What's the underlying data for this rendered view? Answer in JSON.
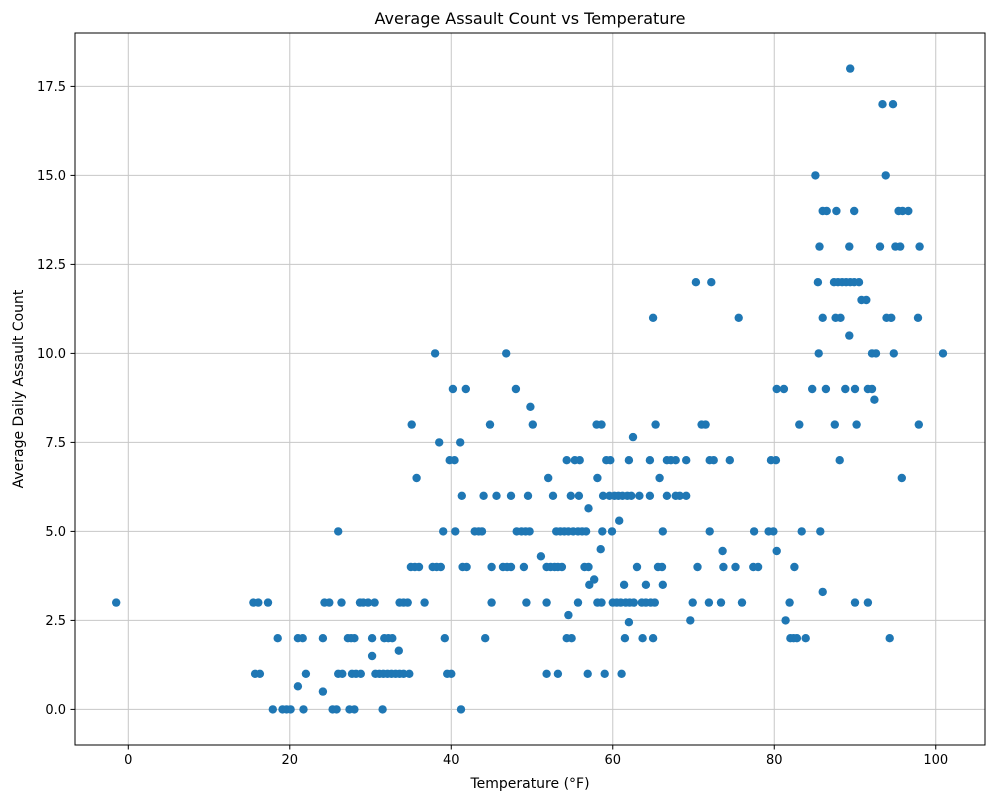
{
  "chart_data": {
    "type": "scatter",
    "title": "Average Assault Count vs Temperature",
    "xlabel": "Temperature (°F)",
    "ylabel": "Average Daily Assault Count",
    "xlim": [
      -6.6,
      106.1
    ],
    "ylim": [
      -1.0,
      19.0
    ],
    "xticks": [
      0,
      20,
      40,
      60,
      80,
      100
    ],
    "yticks": [
      0.0,
      2.5,
      5.0,
      7.5,
      10.0,
      12.5,
      15.0,
      17.5
    ],
    "grid": true,
    "legend_position": "none",
    "marker_color": "#1f77b4",
    "grid_color": "#c7c7c7",
    "marker_radius": 4.2,
    "points": [
      [
        89.4,
        18
      ],
      [
        93.4,
        17
      ],
      [
        94.7,
        17
      ],
      [
        85.1,
        15
      ],
      [
        93.8,
        15
      ],
      [
        86.0,
        14
      ],
      [
        86.5,
        14
      ],
      [
        87.7,
        14
      ],
      [
        89.9,
        14
      ],
      [
        95.4,
        14
      ],
      [
        95.9,
        14
      ],
      [
        96.6,
        14
      ],
      [
        85.6,
        13
      ],
      [
        89.3,
        13
      ],
      [
        93.1,
        13
      ],
      [
        95.0,
        13
      ],
      [
        95.6,
        13
      ],
      [
        98.0,
        13
      ],
      [
        70.3,
        12
      ],
      [
        72.2,
        12
      ],
      [
        85.4,
        12
      ],
      [
        87.4,
        12
      ],
      [
        87.9,
        12
      ],
      [
        88.4,
        12
      ],
      [
        88.9,
        12
      ],
      [
        89.4,
        12
      ],
      [
        89.9,
        12
      ],
      [
        90.5,
        12
      ],
      [
        90.8,
        11.5
      ],
      [
        91.4,
        11.5
      ],
      [
        65.0,
        11
      ],
      [
        75.6,
        11
      ],
      [
        86.0,
        11
      ],
      [
        87.6,
        11
      ],
      [
        88.2,
        11
      ],
      [
        93.9,
        11
      ],
      [
        94.5,
        11
      ],
      [
        97.8,
        11
      ],
      [
        89.3,
        10.5
      ],
      [
        38.0,
        10
      ],
      [
        46.8,
        10
      ],
      [
        85.5,
        10
      ],
      [
        92.1,
        10
      ],
      [
        92.6,
        10
      ],
      [
        94.8,
        10
      ],
      [
        100.9,
        10
      ],
      [
        40.2,
        9
      ],
      [
        41.8,
        9
      ],
      [
        48.0,
        9
      ],
      [
        80.3,
        9
      ],
      [
        81.2,
        9
      ],
      [
        84.7,
        9
      ],
      [
        86.4,
        9
      ],
      [
        88.8,
        9
      ],
      [
        90.0,
        9
      ],
      [
        91.6,
        9
      ],
      [
        92.1,
        9
      ],
      [
        92.4,
        8.7
      ],
      [
        49.8,
        8.5
      ],
      [
        35.1,
        8
      ],
      [
        44.8,
        8
      ],
      [
        50.1,
        8
      ],
      [
        58.0,
        8
      ],
      [
        58.6,
        8
      ],
      [
        65.3,
        8
      ],
      [
        71.0,
        8
      ],
      [
        71.5,
        8
      ],
      [
        83.1,
        8
      ],
      [
        87.5,
        8
      ],
      [
        90.2,
        8
      ],
      [
        97.9,
        8
      ],
      [
        62.5,
        7.65
      ],
      [
        38.5,
        7.5
      ],
      [
        41.1,
        7.5
      ],
      [
        39.8,
        7
      ],
      [
        40.4,
        7
      ],
      [
        54.3,
        7
      ],
      [
        55.3,
        7
      ],
      [
        55.9,
        7
      ],
      [
        59.2,
        7
      ],
      [
        59.7,
        7
      ],
      [
        62.0,
        7
      ],
      [
        64.6,
        7
      ],
      [
        66.7,
        7
      ],
      [
        67.2,
        7
      ],
      [
        67.8,
        7
      ],
      [
        69.1,
        7
      ],
      [
        72.0,
        7
      ],
      [
        72.5,
        7
      ],
      [
        74.5,
        7
      ],
      [
        79.6,
        7
      ],
      [
        80.2,
        7
      ],
      [
        88.1,
        7
      ],
      [
        35.7,
        6.5
      ],
      [
        52.0,
        6.5
      ],
      [
        58.1,
        6.5
      ],
      [
        65.8,
        6.5
      ],
      [
        95.8,
        6.5
      ],
      [
        41.3,
        6
      ],
      [
        44.0,
        6
      ],
      [
        45.6,
        6
      ],
      [
        47.4,
        6
      ],
      [
        49.5,
        6
      ],
      [
        52.6,
        6
      ],
      [
        54.8,
        6
      ],
      [
        55.8,
        6
      ],
      [
        58.8,
        6
      ],
      [
        59.6,
        6
      ],
      [
        60.2,
        6
      ],
      [
        60.7,
        6
      ],
      [
        61.2,
        6
      ],
      [
        61.8,
        6
      ],
      [
        62.3,
        6
      ],
      [
        63.3,
        6
      ],
      [
        64.6,
        6
      ],
      [
        66.7,
        6
      ],
      [
        67.8,
        6
      ],
      [
        68.3,
        6
      ],
      [
        69.1,
        6
      ],
      [
        57.0,
        5.65
      ],
      [
        60.8,
        5.3
      ],
      [
        26.0,
        5
      ],
      [
        39.0,
        5
      ],
      [
        40.5,
        5
      ],
      [
        42.9,
        5
      ],
      [
        43.4,
        5
      ],
      [
        43.8,
        5
      ],
      [
        48.1,
        5
      ],
      [
        48.7,
        5
      ],
      [
        49.2,
        5
      ],
      [
        49.7,
        5
      ],
      [
        53.0,
        5
      ],
      [
        53.5,
        5
      ],
      [
        54.0,
        5
      ],
      [
        54.5,
        5
      ],
      [
        55.1,
        5
      ],
      [
        55.7,
        5
      ],
      [
        56.2,
        5
      ],
      [
        56.7,
        5
      ],
      [
        58.7,
        5
      ],
      [
        59.9,
        5
      ],
      [
        66.2,
        5
      ],
      [
        72.0,
        5
      ],
      [
        77.5,
        5
      ],
      [
        79.3,
        5
      ],
      [
        79.9,
        5
      ],
      [
        83.4,
        5
      ],
      [
        85.7,
        5
      ],
      [
        58.5,
        4.5
      ],
      [
        73.6,
        4.45
      ],
      [
        80.3,
        4.45
      ],
      [
        51.1,
        4.3
      ],
      [
        35.0,
        4
      ],
      [
        35.5,
        4
      ],
      [
        36.0,
        4
      ],
      [
        37.7,
        4
      ],
      [
        38.2,
        4
      ],
      [
        38.7,
        4
      ],
      [
        41.4,
        4
      ],
      [
        41.9,
        4
      ],
      [
        45.0,
        4
      ],
      [
        46.4,
        4
      ],
      [
        46.9,
        4
      ],
      [
        47.4,
        4
      ],
      [
        49.0,
        4
      ],
      [
        51.8,
        4
      ],
      [
        52.3,
        4
      ],
      [
        52.8,
        4
      ],
      [
        53.2,
        4
      ],
      [
        53.7,
        4
      ],
      [
        56.5,
        4
      ],
      [
        57.0,
        4
      ],
      [
        63.0,
        4
      ],
      [
        65.6,
        4
      ],
      [
        66.1,
        4
      ],
      [
        70.5,
        4
      ],
      [
        73.7,
        4
      ],
      [
        75.2,
        4
      ],
      [
        77.4,
        4
      ],
      [
        78.0,
        4
      ],
      [
        82.5,
        4
      ],
      [
        57.7,
        3.65
      ],
      [
        57.1,
        3.5
      ],
      [
        61.4,
        3.5
      ],
      [
        64.1,
        3.5
      ],
      [
        66.2,
        3.5
      ],
      [
        86.0,
        3.3
      ],
      [
        -1.5,
        3
      ],
      [
        15.5,
        3
      ],
      [
        16.1,
        3
      ],
      [
        17.3,
        3
      ],
      [
        24.3,
        3
      ],
      [
        24.9,
        3
      ],
      [
        26.4,
        3
      ],
      [
        28.7,
        3
      ],
      [
        29.1,
        3
      ],
      [
        29.7,
        3
      ],
      [
        30.5,
        3
      ],
      [
        33.6,
        3
      ],
      [
        34.1,
        3
      ],
      [
        34.6,
        3
      ],
      [
        36.7,
        3
      ],
      [
        45.0,
        3
      ],
      [
        49.3,
        3
      ],
      [
        51.8,
        3
      ],
      [
        55.7,
        3
      ],
      [
        58.1,
        3
      ],
      [
        58.6,
        3
      ],
      [
        60.0,
        3
      ],
      [
        60.5,
        3
      ],
      [
        61.0,
        3
      ],
      [
        61.6,
        3
      ],
      [
        62.1,
        3
      ],
      [
        62.6,
        3
      ],
      [
        63.6,
        3
      ],
      [
        64.1,
        3
      ],
      [
        64.7,
        3
      ],
      [
        65.2,
        3
      ],
      [
        69.9,
        3
      ],
      [
        71.9,
        3
      ],
      [
        73.4,
        3
      ],
      [
        76.0,
        3
      ],
      [
        81.9,
        3
      ],
      [
        90.0,
        3
      ],
      [
        91.6,
        3
      ],
      [
        54.5,
        2.65
      ],
      [
        62.0,
        2.45
      ],
      [
        69.6,
        2.5
      ],
      [
        81.4,
        2.5
      ],
      [
        18.5,
        2
      ],
      [
        21.0,
        2
      ],
      [
        21.6,
        2
      ],
      [
        24.1,
        2
      ],
      [
        27.2,
        2
      ],
      [
        27.6,
        2
      ],
      [
        28.0,
        2
      ],
      [
        30.2,
        2
      ],
      [
        31.7,
        2
      ],
      [
        32.2,
        2
      ],
      [
        32.7,
        2
      ],
      [
        39.2,
        2
      ],
      [
        44.2,
        2
      ],
      [
        54.3,
        2
      ],
      [
        54.9,
        2
      ],
      [
        61.5,
        2
      ],
      [
        63.7,
        2
      ],
      [
        65.0,
        2
      ],
      [
        82.0,
        2
      ],
      [
        82.4,
        2
      ],
      [
        82.8,
        2
      ],
      [
        83.9,
        2
      ],
      [
        94.3,
        2
      ],
      [
        33.5,
        1.65
      ],
      [
        30.2,
        1.5
      ],
      [
        15.7,
        1
      ],
      [
        16.3,
        1
      ],
      [
        22.0,
        1
      ],
      [
        26.0,
        1
      ],
      [
        26.5,
        1
      ],
      [
        27.7,
        1
      ],
      [
        28.2,
        1
      ],
      [
        28.8,
        1
      ],
      [
        30.6,
        1
      ],
      [
        31.1,
        1
      ],
      [
        31.6,
        1
      ],
      [
        32.1,
        1
      ],
      [
        32.6,
        1
      ],
      [
        33.1,
        1
      ],
      [
        33.6,
        1
      ],
      [
        34.1,
        1
      ],
      [
        34.8,
        1
      ],
      [
        39.5,
        1
      ],
      [
        40.0,
        1
      ],
      [
        51.8,
        1
      ],
      [
        53.2,
        1
      ],
      [
        56.9,
        1
      ],
      [
        59.0,
        1
      ],
      [
        61.1,
        1
      ],
      [
        21.0,
        0.65
      ],
      [
        24.1,
        0.5
      ],
      [
        17.9,
        0
      ],
      [
        19.1,
        0
      ],
      [
        19.6,
        0
      ],
      [
        20.1,
        0
      ],
      [
        21.7,
        0
      ],
      [
        25.3,
        0
      ],
      [
        25.8,
        0
      ],
      [
        27.4,
        0
      ],
      [
        28.0,
        0
      ],
      [
        31.5,
        0
      ],
      [
        41.2,
        0
      ]
    ]
  }
}
